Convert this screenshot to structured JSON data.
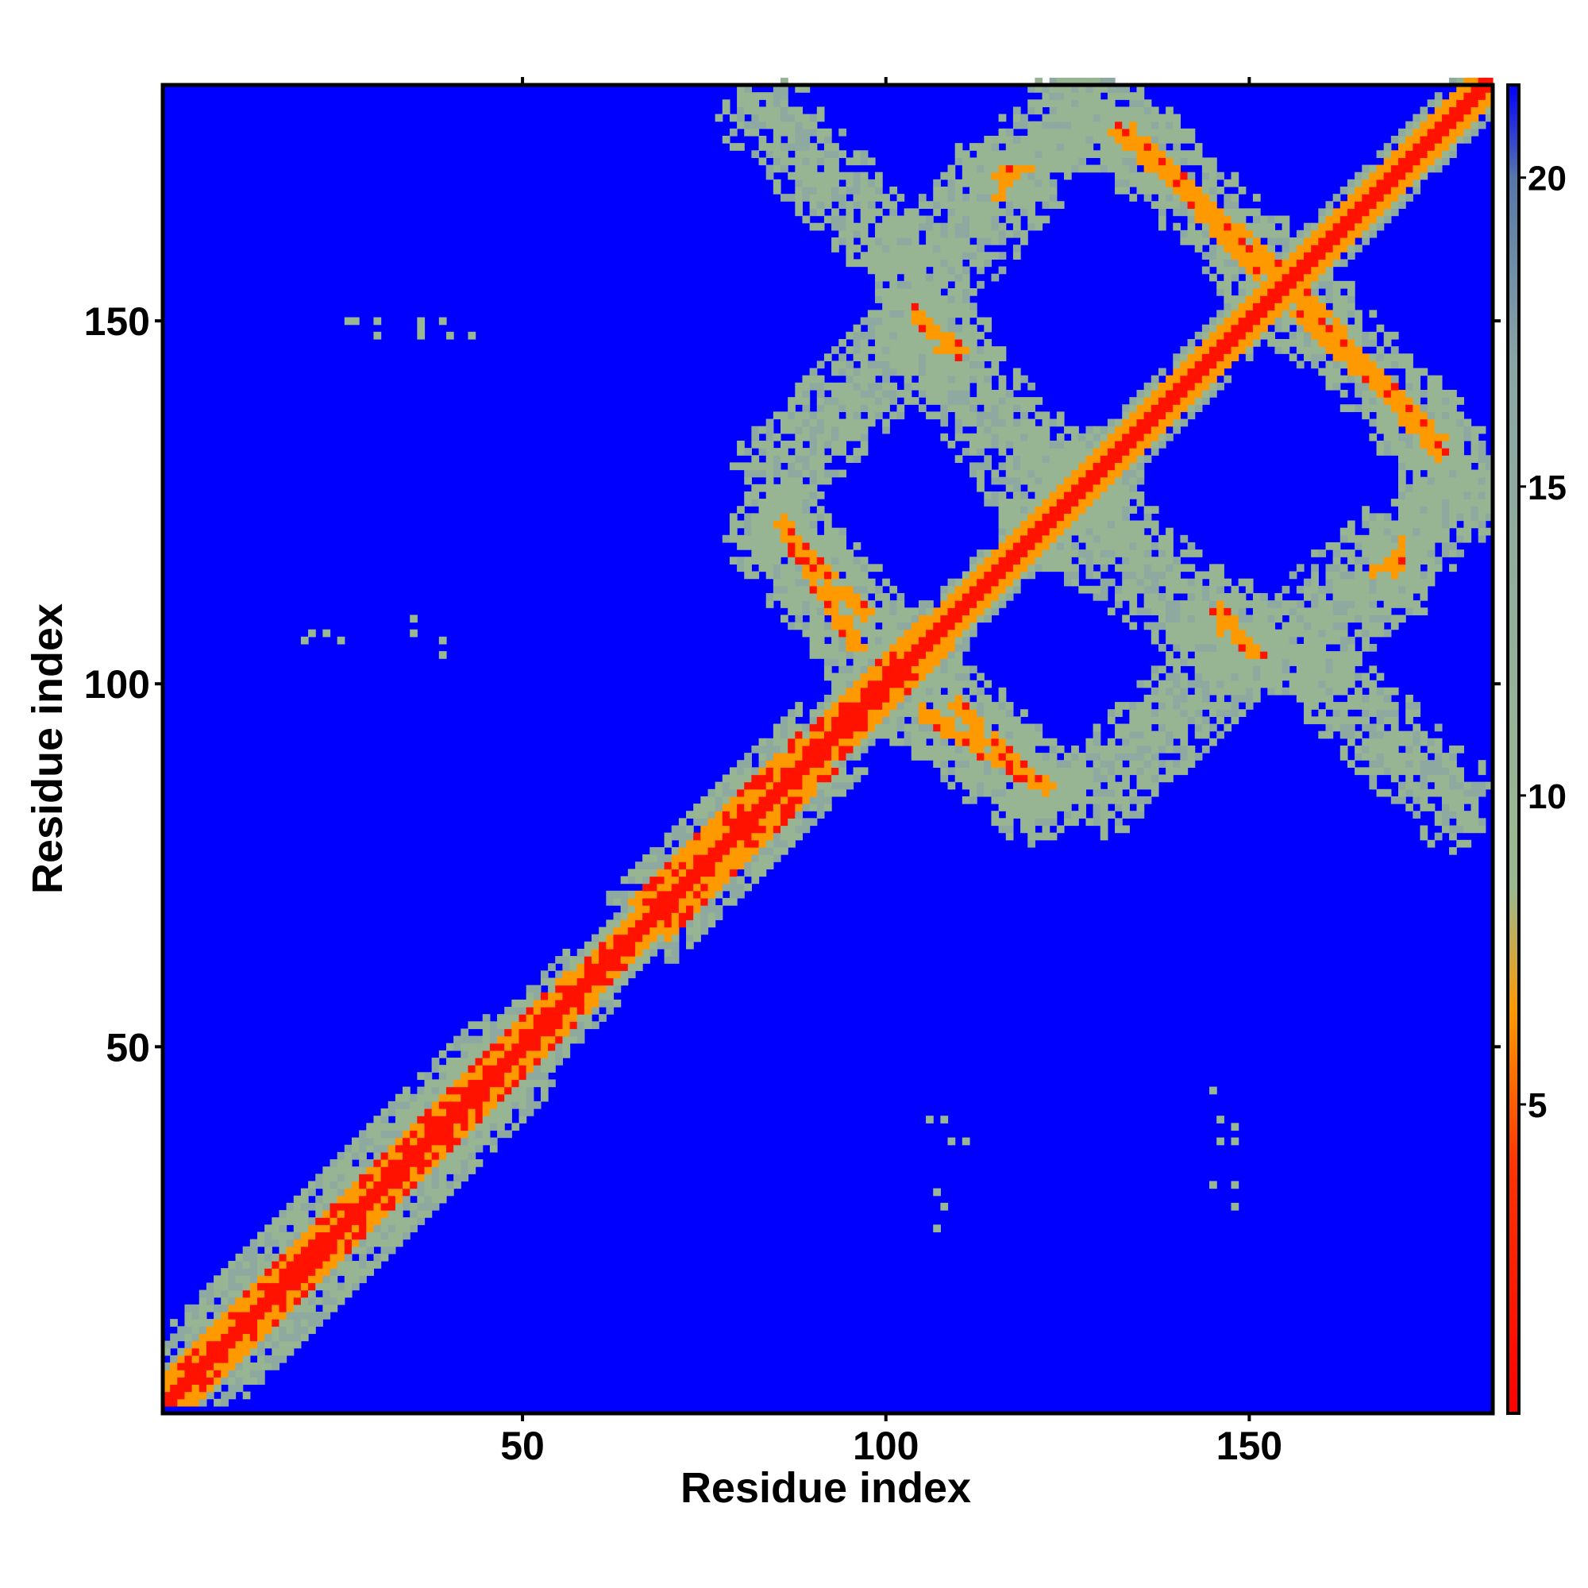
{
  "chart_data": {
    "type": "heatmap",
    "title": "",
    "xlabel": "Residue index",
    "ylabel": "Residue index",
    "xlim": [
      1,
      183
    ],
    "ylim": [
      1,
      183
    ],
    "x_ticks": [
      50,
      100,
      150
    ],
    "y_ticks": [
      50,
      100,
      150
    ],
    "colorbar": {
      "range": [
        0,
        21.5
      ],
      "ticks": [
        5,
        10,
        15,
        20
      ],
      "stops": [
        {
          "value": 0,
          "color": "#ff0000"
        },
        {
          "value": 4,
          "color": "#ff3300"
        },
        {
          "value": 6.5,
          "color": "#ff9900"
        },
        {
          "value": 8.5,
          "color": "#9ab98f"
        },
        {
          "value": 17,
          "color": "#8aa5a5"
        },
        {
          "value": 20,
          "color": "#5577aa"
        },
        {
          "value": 21.5,
          "color": "#0000ff"
        }
      ]
    },
    "background_value": 21.5,
    "diagonal_band": {
      "core_width": 1.5,
      "orange_width": 3,
      "halo_width": 5
    },
    "features": [
      {
        "kind": "diag_region",
        "from": 5,
        "to": 45,
        "halo": 10,
        "orange": 4
      },
      {
        "kind": "diag_region",
        "from": 40,
        "to": 56,
        "halo": 7,
        "orange": 4
      },
      {
        "kind": "diag_region",
        "from": 56,
        "to": 72,
        "halo": 5,
        "orange": 3
      },
      {
        "kind": "diag_region",
        "from": 70,
        "to": 88,
        "halo": 9,
        "orange": 5
      },
      {
        "kind": "diag_region",
        "from": 90,
        "to": 105,
        "halo": 6,
        "orange": 4
      },
      {
        "kind": "segment",
        "x1": 87,
        "y1": 120,
        "x2": 97,
        "y2": 110,
        "orange": 1.2,
        "halo": 6
      },
      {
        "kind": "segment",
        "x1": 105,
        "y1": 96,
        "x2": 122,
        "y2": 86,
        "orange": 1.2,
        "halo": 6
      },
      {
        "kind": "segment",
        "x1": 104,
        "y1": 151,
        "x2": 110,
        "y2": 146,
        "orange": 1,
        "halo": 6
      },
      {
        "kind": "segment",
        "x1": 114,
        "y1": 170,
        "x2": 120,
        "y2": 171,
        "orange": 0.8,
        "halo": 6
      },
      {
        "kind": "segment",
        "x1": 132,
        "y1": 176,
        "x2": 153,
        "y2": 158,
        "orange": 1.3,
        "halo": 6
      },
      {
        "kind": "segment",
        "x1": 157,
        "y1": 151,
        "x2": 176,
        "y2": 134,
        "orange": 1.3,
        "halo": 6
      },
      {
        "kind": "segment",
        "x1": 146,
        "y1": 108,
        "x2": 150,
        "y2": 105,
        "orange": 1,
        "halo": 5
      },
      {
        "kind": "segment",
        "x1": 167,
        "y1": 115,
        "x2": 169,
        "y2": 117,
        "orange": 0.8,
        "halo": 5
      },
      {
        "kind": "segment",
        "x1": 120,
        "y1": 121,
        "x2": 130,
        "y2": 131,
        "orange": 0.6,
        "halo": 5
      },
      {
        "kind": "halo_segment",
        "x1": 82,
        "y1": 178,
        "x2": 100,
        "y2": 160,
        "width": 5
      },
      {
        "kind": "halo_segment",
        "x1": 102,
        "y1": 158,
        "x2": 125,
        "y2": 180,
        "width": 5
      },
      {
        "kind": "halo_segment",
        "x1": 84,
        "y1": 130,
        "x2": 104,
        "y2": 150,
        "width": 5
      },
      {
        "kind": "halo_segment",
        "x1": 104,
        "y1": 150,
        "x2": 122,
        "y2": 132,
        "width": 5
      },
      {
        "kind": "halo_segment",
        "x1": 125,
        "y1": 120,
        "x2": 148,
        "y2": 104,
        "width": 5
      },
      {
        "kind": "halo_segment",
        "x1": 130,
        "y1": 88,
        "x2": 145,
        "y2": 104,
        "width": 5
      },
      {
        "kind": "halo_segment",
        "x1": 155,
        "y1": 108,
        "x2": 178,
        "y2": 128,
        "width": 5
      },
      {
        "kind": "halo_segment",
        "x1": 158,
        "y1": 104,
        "x2": 178,
        "y2": 86,
        "width": 5
      },
      {
        "kind": "halo_segment",
        "x1": 120,
        "y1": 132,
        "x2": 130,
        "y2": 124,
        "width": 4
      },
      {
        "kind": "halo_segment",
        "x1": 125,
        "y1": 180,
        "x2": 132,
        "y2": 178,
        "width": 5
      },
      {
        "kind": "halo_segment",
        "x1": 178,
        "y1": 128,
        "x2": 172,
        "y2": 134,
        "width": 5
      },
      {
        "kind": "halo_segment",
        "x1": 87,
        "y1": 118,
        "x2": 100,
        "y2": 106,
        "width": 6
      },
      {
        "kind": "halo_segment",
        "x1": 104,
        "y1": 98,
        "x2": 120,
        "y2": 84,
        "width": 6
      },
      {
        "kind": "dots",
        "color_value": 9.5,
        "points": [
          [
            26,
            150
          ],
          [
            27,
            150
          ],
          [
            30,
            150
          ],
          [
            30,
            148
          ],
          [
            36,
            150
          ],
          [
            36,
            149
          ],
          [
            39,
            150
          ],
          [
            40,
            148
          ],
          [
            43,
            148
          ],
          [
            36,
            148
          ],
          [
            20,
            106
          ],
          [
            21,
            107
          ],
          [
            23,
            107
          ],
          [
            25,
            106
          ],
          [
            35,
            109
          ],
          [
            35,
            107
          ],
          [
            39,
            106
          ],
          [
            39,
            104
          ],
          [
            106,
            40
          ],
          [
            108,
            40
          ],
          [
            109,
            37
          ],
          [
            111,
            37
          ],
          [
            107,
            30
          ],
          [
            108,
            28
          ],
          [
            107,
            25
          ],
          [
            145,
            44
          ],
          [
            146,
            40
          ],
          [
            148,
            39
          ],
          [
            146,
            37
          ],
          [
            148,
            37
          ],
          [
            145,
            31
          ],
          [
            148,
            31
          ],
          [
            148,
            28
          ]
        ]
      }
    ]
  }
}
